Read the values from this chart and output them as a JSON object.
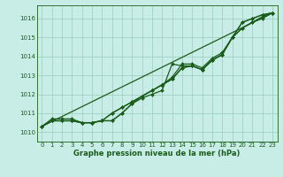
{
  "xlabel": "Graphe pression niveau de la mer (hPa)",
  "xlim": [
    -0.5,
    23.5
  ],
  "ylim": [
    1009.5,
    1016.7
  ],
  "yticks": [
    1010,
    1011,
    1012,
    1013,
    1014,
    1015,
    1016
  ],
  "xticks": [
    0,
    1,
    2,
    3,
    4,
    5,
    6,
    7,
    8,
    9,
    10,
    11,
    12,
    13,
    14,
    15,
    16,
    17,
    18,
    19,
    20,
    21,
    22,
    23
  ],
  "background_color": "#c8ece6",
  "grid_color": "#99ccbb",
  "line_color": "#1a5c1a",
  "lines": [
    {
      "x": [
        0,
        1,
        2,
        3,
        4,
        5,
        6,
        7,
        8,
        9,
        10,
        11,
        12,
        13,
        14,
        15,
        16,
        17,
        18,
        19,
        20,
        21,
        22,
        23
      ],
      "y": [
        1010.3,
        1010.6,
        1010.6,
        1010.6,
        1010.5,
        1010.5,
        1010.6,
        1010.6,
        1011.0,
        1011.5,
        1011.8,
        1012.0,
        1012.2,
        1013.6,
        1013.5,
        1013.5,
        1013.3,
        1013.8,
        1014.1,
        1015.0,
        1015.8,
        1016.0,
        1016.2,
        1016.3
      ],
      "marker": true
    },
    {
      "x": [
        0,
        1,
        2,
        3,
        4,
        5,
        6,
        7,
        8,
        9,
        10,
        11,
        12,
        13,
        14,
        15,
        16,
        17,
        18,
        19,
        20,
        21,
        22,
        23
      ],
      "y": [
        1010.3,
        1010.6,
        1010.6,
        1010.6,
        1010.5,
        1010.5,
        1010.6,
        1011.0,
        1011.3,
        1011.6,
        1011.9,
        1012.2,
        1012.5,
        1012.8,
        1013.4,
        1013.5,
        1013.3,
        1013.8,
        1014.1,
        1015.0,
        1015.8,
        1016.0,
        1016.2,
        1016.3
      ],
      "marker": true
    },
    {
      "x": [
        0,
        1,
        2,
        3,
        4,
        5,
        6,
        7,
        8,
        9,
        10,
        11,
        12,
        13,
        14,
        15,
        16,
        17,
        18,
        19,
        20,
        21,
        22,
        23
      ],
      "y": [
        1010.3,
        1010.6,
        1010.6,
        1010.6,
        1010.5,
        1010.5,
        1010.6,
        1011.0,
        1011.3,
        1011.6,
        1011.9,
        1012.2,
        1012.5,
        1012.8,
        1013.4,
        1013.5,
        1013.3,
        1013.8,
        1014.1,
        1015.0,
        1015.5,
        1015.8,
        1016.0,
        1016.3
      ],
      "marker": true
    },
    {
      "x": [
        0,
        1,
        2,
        3,
        4,
        5,
        6,
        7,
        8,
        9,
        10,
        11,
        12,
        13,
        14,
        15,
        16,
        17,
        18,
        19,
        20,
        21,
        22,
        23
      ],
      "y": [
        1010.3,
        1010.7,
        1010.7,
        1010.7,
        1010.5,
        1010.5,
        1010.6,
        1010.6,
        1011.0,
        1011.5,
        1011.9,
        1012.2,
        1012.5,
        1012.9,
        1013.6,
        1013.6,
        1013.4,
        1013.9,
        1014.2,
        1015.0,
        1015.5,
        1015.8,
        1016.1,
        1016.3
      ],
      "marker": true
    },
    {
      "x": [
        0,
        23
      ],
      "y": [
        1010.3,
        1016.3
      ],
      "marker": false
    }
  ],
  "marker_style": "D",
  "markersize": 2.0,
  "linewidth": 0.9,
  "tick_fontsize": 5.0,
  "xlabel_fontsize": 6.0
}
